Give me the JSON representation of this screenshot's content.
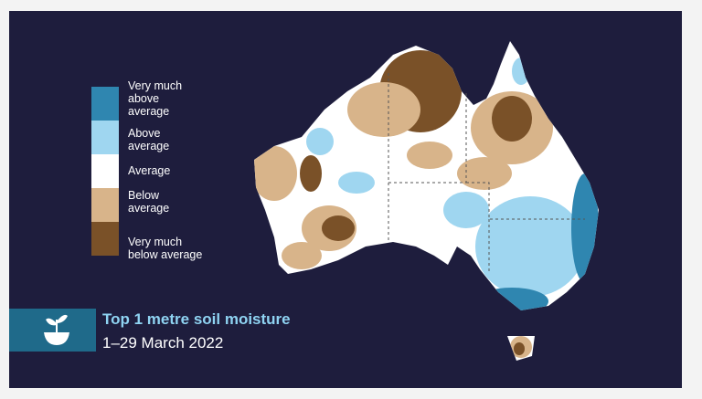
{
  "legend": {
    "items": [
      {
        "lines": [
          "Very much",
          "above",
          "average"
        ],
        "color": "#2f86b0"
      },
      {
        "lines": [
          "Above",
          "average"
        ],
        "color": "#9fd6f0"
      },
      {
        "lines": [
          "Average"
        ],
        "color": "#ffffff"
      },
      {
        "lines": [
          "Below",
          "average"
        ],
        "color": "#d8b48a"
      },
      {
        "lines": [
          "Very much",
          "below average"
        ],
        "color": "#7a5128"
      }
    ]
  },
  "title": "Top 1 metre soil moisture",
  "subtitle": "1–29 March 2022"
}
